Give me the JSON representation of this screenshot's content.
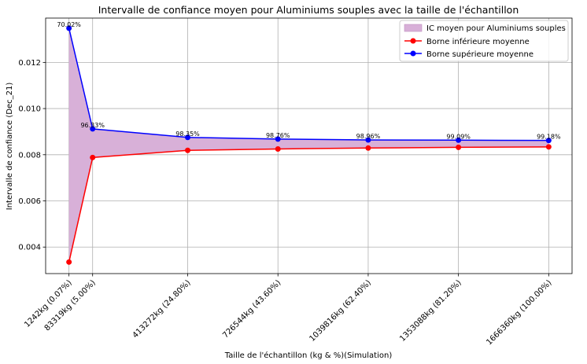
{
  "chart_data": {
    "type": "line",
    "title": "Intervalle de confiance moyen pour Aluminiums souples avec la taille de l'échantillon",
    "xlabel": "Taille de l'échantillon (kg & %)(Simulation)",
    "ylabel": "Intervalle de confiance (Dec_21)",
    "x": [
      1242,
      83319,
      413272,
      726544,
      1039816,
      1353088,
      1666360
    ],
    "x_tick_labels": [
      "1242kg (0.07%)",
      "83319kg (5.00%)",
      "413272kg (24.80%)",
      "726544kg (43.60%)",
      "1039816kg (62.40%)",
      "1353088kg (81.20%)",
      "1666360kg (100.00%)"
    ],
    "series": [
      {
        "name": "Borne inférieure moyenne",
        "color": "#ff0000",
        "values": [
          0.00335,
          0.00788,
          0.00819,
          0.00825,
          0.00829,
          0.00832,
          0.00834
        ]
      },
      {
        "name": "Borne supérieure moyenne",
        "color": "#0000ff",
        "values": [
          0.01348,
          0.00912,
          0.00875,
          0.00868,
          0.00864,
          0.00863,
          0.00862
        ]
      }
    ],
    "fill": {
      "name": "IC moyen pour Aluminiums souples",
      "color": "#d8b0d8"
    },
    "data_labels": [
      "70.02%",
      "96.33%",
      "98.35%",
      "98.76%",
      "98.96%",
      "99.09%",
      "99.18%"
    ],
    "y_ticks": [
      0.004,
      0.006,
      0.008,
      0.01,
      0.012
    ],
    "y_tick_labels": [
      "0.004",
      "0.006",
      "0.008",
      "0.010",
      "0.012"
    ],
    "ylim": [
      0.00285,
      0.01392
    ],
    "xlim": [
      -79764,
      1747366
    ],
    "grid": true,
    "legend_position": "top-right"
  }
}
